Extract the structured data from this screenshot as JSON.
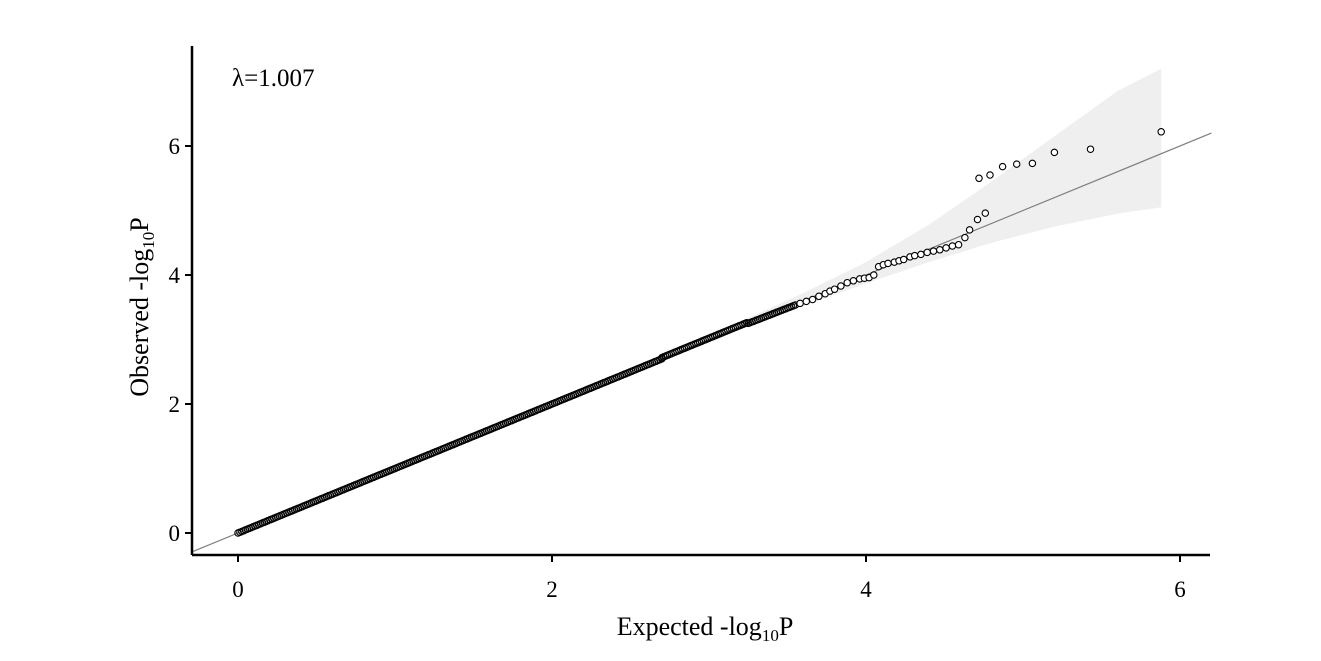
{
  "chart_data": {
    "type": "scatter",
    "subtype": "qq-plot",
    "title": "",
    "xlabel": {
      "base": "Expected -log",
      "sub": "10",
      "suffix": "P"
    },
    "ylabel": {
      "base": "Observed -log",
      "sub": "10",
      "suffix": "P"
    },
    "annotation": "λ=1.007",
    "xlim": [
      -0.3,
      6.2
    ],
    "ylim": [
      -0.3,
      7.6
    ],
    "x_ticks": [
      0,
      2,
      4,
      6
    ],
    "y_ticks": [
      0,
      2,
      4,
      6
    ],
    "x_tick_labels": [
      "0",
      "2",
      "4",
      "6"
    ],
    "y_tick_labels": [
      "0",
      "2",
      "4",
      "6"
    ],
    "grid": false,
    "colors": {
      "points": "#000000",
      "reference_line": "#7f7f7f",
      "confidence_band": "#efefef",
      "axis": "#000000"
    },
    "reference_line": {
      "slope": 1,
      "intercept": 0
    },
    "confidence_band": [
      {
        "x": 3.2,
        "lower": 3.15,
        "upper": 3.28
      },
      {
        "x": 3.6,
        "lower": 3.52,
        "upper": 3.72
      },
      {
        "x": 4.0,
        "lower": 3.87,
        "upper": 4.2
      },
      {
        "x": 4.4,
        "lower": 4.2,
        "upper": 4.78
      },
      {
        "x": 4.8,
        "lower": 4.5,
        "upper": 5.45
      },
      {
        "x": 5.2,
        "lower": 4.75,
        "upper": 6.15
      },
      {
        "x": 5.6,
        "lower": 4.95,
        "upper": 6.85
      },
      {
        "x": 5.88,
        "lower": 5.05,
        "upper": 7.2
      }
    ],
    "series": [
      {
        "dense_segments": [
          {
            "x0": 0.0,
            "x1": 2.7,
            "slope": 1.0,
            "y0": 0.0
          },
          {
            "x0": 2.7,
            "x1": 3.25,
            "slope": 1.0,
            "y0": 2.72
          },
          {
            "x0": 3.25,
            "x1": 3.55,
            "slope": 0.95,
            "y0": 3.25
          }
        ],
        "points": [
          {
            "x": 3.58,
            "y": 3.56
          },
          {
            "x": 3.62,
            "y": 3.59
          },
          {
            "x": 3.66,
            "y": 3.62
          },
          {
            "x": 3.7,
            "y": 3.67
          },
          {
            "x": 3.74,
            "y": 3.71
          },
          {
            "x": 3.77,
            "y": 3.75
          },
          {
            "x": 3.8,
            "y": 3.78
          },
          {
            "x": 3.84,
            "y": 3.83
          },
          {
            "x": 3.88,
            "y": 3.88
          },
          {
            "x": 3.92,
            "y": 3.91
          },
          {
            "x": 3.96,
            "y": 3.94
          },
          {
            "x": 3.99,
            "y": 3.95
          },
          {
            "x": 4.02,
            "y": 3.96
          },
          {
            "x": 4.05,
            "y": 4.0
          },
          {
            "x": 4.08,
            "y": 4.13
          },
          {
            "x": 4.11,
            "y": 4.16
          },
          {
            "x": 4.14,
            "y": 4.18
          },
          {
            "x": 4.18,
            "y": 4.2
          },
          {
            "x": 4.21,
            "y": 4.22
          },
          {
            "x": 4.24,
            "y": 4.24
          },
          {
            "x": 4.28,
            "y": 4.28
          },
          {
            "x": 4.31,
            "y": 4.3
          },
          {
            "x": 4.35,
            "y": 4.32
          },
          {
            "x": 4.39,
            "y": 4.35
          },
          {
            "x": 4.43,
            "y": 4.37
          },
          {
            "x": 4.47,
            "y": 4.39
          },
          {
            "x": 4.51,
            "y": 4.42
          },
          {
            "x": 4.55,
            "y": 4.45
          },
          {
            "x": 4.59,
            "y": 4.47
          },
          {
            "x": 4.63,
            "y": 4.58
          },
          {
            "x": 4.66,
            "y": 4.7
          },
          {
            "x": 4.71,
            "y": 4.86
          },
          {
            "x": 4.76,
            "y": 4.96
          },
          {
            "x": 4.72,
            "y": 5.5
          },
          {
            "x": 4.79,
            "y": 5.55
          },
          {
            "x": 4.87,
            "y": 5.68
          },
          {
            "x": 4.96,
            "y": 5.72
          },
          {
            "x": 5.06,
            "y": 5.73
          },
          {
            "x": 5.2,
            "y": 5.9
          },
          {
            "x": 5.43,
            "y": 5.95
          },
          {
            "x": 5.88,
            "y": 6.22
          }
        ]
      }
    ]
  }
}
